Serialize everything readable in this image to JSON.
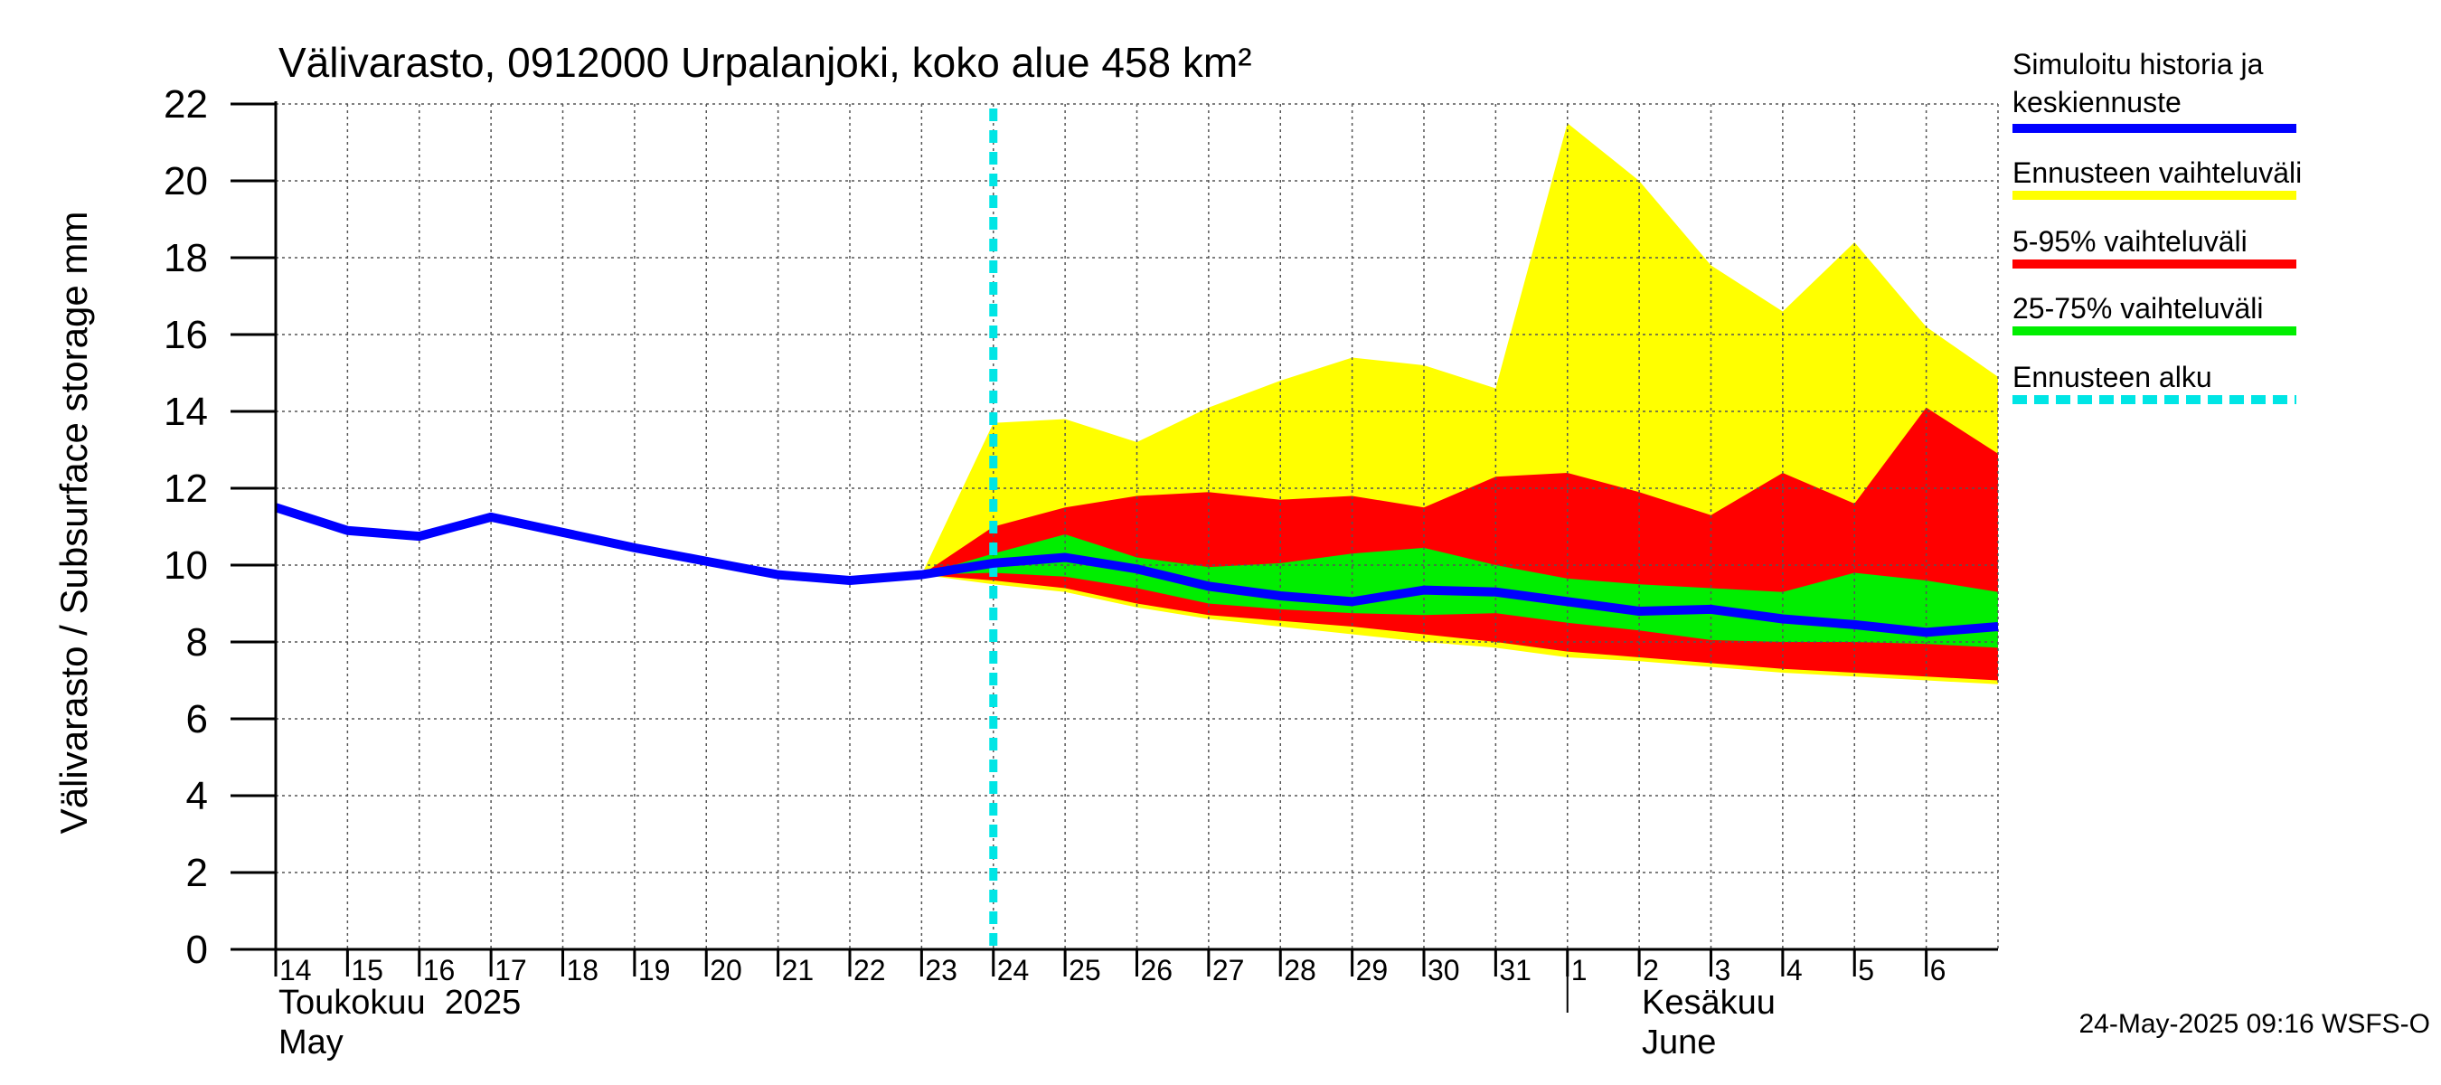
{
  "chart_data": {
    "type": "area",
    "title": "Välivarasto, 0912000 Urpalanjoki, koko alue 458 km²",
    "ylabel": "Välivarasto / Subsurface storage  mm",
    "ylim": [
      0,
      22
    ],
    "ytick_labels": [
      "0",
      "2",
      "4",
      "6",
      "8",
      "10",
      "12",
      "14",
      "16",
      "18",
      "20",
      "22"
    ],
    "xlim_days": [
      14,
      38
    ],
    "x_tick_labels": [
      "14",
      "15",
      "16",
      "17",
      "18",
      "19",
      "20",
      "21",
      "22",
      "23",
      "24",
      "25",
      "26",
      "27",
      "28",
      "29",
      "30",
      "31",
      "1",
      "2",
      "3",
      "4",
      "5",
      "6"
    ],
    "month_labels": [
      {
        "fi": "Toukokuu  2025",
        "en": "May"
      },
      {
        "fi": "Kesäkuu",
        "en": "June"
      }
    ],
    "forecast_start": 24.0,
    "grid": true,
    "legend_position": "right",
    "history": {
      "x": [
        14,
        15,
        16,
        17,
        18,
        19,
        20,
        21,
        22,
        23
      ],
      "y": [
        11.5,
        10.9,
        10.75,
        11.25,
        10.85,
        10.45,
        10.1,
        9.75,
        9.6,
        9.75
      ]
    },
    "forecast_x": [
      23,
      24,
      25,
      26,
      27,
      28,
      29,
      30,
      31,
      32,
      33,
      34,
      35,
      36,
      37,
      38
    ],
    "series": [
      {
        "name": "Ennusteen vaihteluväli",
        "color": "#ffff00",
        "upper": [
          9.75,
          13.7,
          13.8,
          13.2,
          14.1,
          14.8,
          15.4,
          15.2,
          14.6,
          21.5,
          20.0,
          17.8,
          16.6,
          18.4,
          16.2,
          14.9
        ],
        "lower": [
          9.75,
          9.5,
          9.3,
          8.9,
          8.6,
          8.4,
          8.2,
          8.0,
          7.85,
          7.6,
          7.5,
          7.35,
          7.2,
          7.1,
          7.0,
          6.9
        ]
      },
      {
        "name": "5-95% vaihteluväli",
        "color": "#ff0000",
        "upper": [
          9.75,
          11.0,
          11.5,
          11.8,
          11.9,
          11.7,
          11.8,
          11.5,
          12.3,
          12.4,
          11.9,
          11.3,
          12.4,
          11.6,
          14.1,
          12.9
        ],
        "lower": [
          9.75,
          9.6,
          9.4,
          9.0,
          8.7,
          8.55,
          8.4,
          8.2,
          8.0,
          7.75,
          7.6,
          7.45,
          7.3,
          7.2,
          7.1,
          7.0
        ]
      },
      {
        "name": "25-75% vaihteluväli",
        "color": "#00ee00",
        "upper": [
          9.75,
          10.3,
          10.8,
          10.2,
          9.95,
          10.05,
          10.3,
          10.45,
          10.0,
          9.65,
          9.5,
          9.4,
          9.3,
          9.8,
          9.6,
          9.3
        ],
        "lower": [
          9.75,
          9.8,
          9.7,
          9.4,
          9.0,
          8.85,
          8.75,
          8.7,
          8.75,
          8.5,
          8.3,
          8.05,
          8.0,
          8.0,
          7.95,
          7.85
        ]
      }
    ],
    "median": {
      "name": "Simuloitu historia ja keskiennuste",
      "color": "#0000ff",
      "y": [
        9.75,
        10.05,
        10.2,
        9.9,
        9.45,
        9.2,
        9.05,
        9.35,
        9.3,
        9.05,
        8.8,
        8.85,
        8.6,
        8.45,
        8.25,
        8.4
      ]
    },
    "legend": [
      {
        "label": "Simuloitu historia ja keskiennuste",
        "color": "#0000ff",
        "style": "line"
      },
      {
        "label": "Ennusteen vaihteluväli",
        "color": "#ffff00",
        "style": "line"
      },
      {
        "label": "5-95% vaihteluväli",
        "color": "#ff0000",
        "style": "line"
      },
      {
        "label": "25-75% vaihteluväli",
        "color": "#00ee00",
        "style": "line"
      },
      {
        "label": "Ennusteen alku",
        "color": "#00e5e5",
        "style": "dashed"
      }
    ],
    "footer": "24-May-2025 09:16 WSFS-O"
  }
}
